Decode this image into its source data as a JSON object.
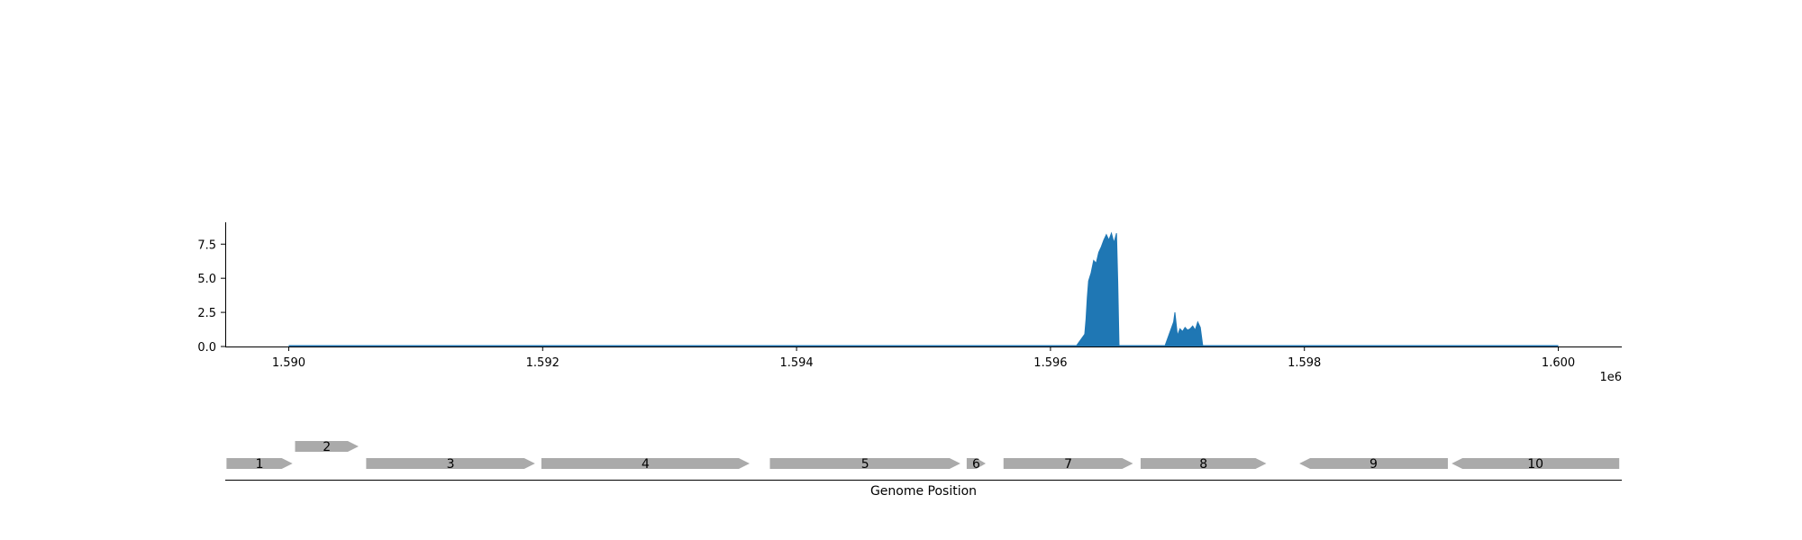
{
  "chart_data": [
    {
      "type": "area",
      "title": "",
      "xlabel": "",
      "ylabel": "",
      "x_offset_label": "1e6",
      "xlim": [
        1.5895,
        1.6005
      ],
      "ylim": [
        0,
        9.1
      ],
      "x_ticks": [
        {
          "value": 1.59,
          "label": "1.590"
        },
        {
          "value": 1.592,
          "label": "1.592"
        },
        {
          "value": 1.594,
          "label": "1.594"
        },
        {
          "value": 1.596,
          "label": "1.596"
        },
        {
          "value": 1.598,
          "label": "1.598"
        },
        {
          "value": 1.6,
          "label": "1.600"
        }
      ],
      "y_ticks": [
        {
          "value": 0.0,
          "label": "0.0"
        },
        {
          "value": 2.5,
          "label": "2.5"
        },
        {
          "value": 5.0,
          "label": "5.0"
        },
        {
          "value": 7.5,
          "label": "7.5"
        }
      ],
      "grid": false,
      "color": "#1f77b4",
      "x": [
        1.59,
        1.5962,
        1.59627,
        1.59628,
        1.59629,
        1.5963,
        1.59632,
        1.59634,
        1.59636,
        1.59638,
        1.5964,
        1.59642,
        1.59644,
        1.59646,
        1.59648,
        1.5965,
        1.59652,
        1.59653,
        1.59654,
        1.5969,
        1.59697,
        1.59698,
        1.597,
        1.59702,
        1.59704,
        1.59706,
        1.59708,
        1.5971,
        1.59712,
        1.59714,
        1.59716,
        1.59718,
        1.5972,
        1.6
      ],
      "y": [
        0.0,
        0.0,
        0.9,
        2.0,
        3.6,
        4.8,
        5.4,
        6.3,
        6.1,
        6.9,
        7.3,
        7.8,
        8.2,
        7.8,
        8.3,
        7.6,
        8.3,
        4.7,
        0.0,
        0.0,
        1.8,
        2.5,
        0.8,
        1.3,
        1.1,
        1.4,
        1.2,
        1.3,
        1.5,
        1.2,
        1.8,
        1.4,
        0.0,
        0.0
      ]
    },
    {
      "type": "gene-track",
      "xlabel": "Genome Position",
      "xlim": [
        1.5895,
        1.6005
      ],
      "genes": [
        {
          "label": "1",
          "start": 1.58951,
          "end": 1.59003,
          "strand": "+",
          "row": 0
        },
        {
          "label": "2",
          "start": 1.59005,
          "end": 1.59055,
          "strand": "+",
          "row": 1
        },
        {
          "label": "3",
          "start": 1.59061,
          "end": 1.59194,
          "strand": "+",
          "row": 0
        },
        {
          "label": "4",
          "start": 1.59199,
          "end": 1.59363,
          "strand": "+",
          "row": 0
        },
        {
          "label": "5",
          "start": 1.59379,
          "end": 1.59529,
          "strand": "+",
          "row": 0
        },
        {
          "label": "6",
          "start": 1.59534,
          "end": 1.59549,
          "strand": "+",
          "row": 0
        },
        {
          "label": "7",
          "start": 1.59563,
          "end": 1.59665,
          "strand": "+",
          "row": 0
        },
        {
          "label": "8",
          "start": 1.59671,
          "end": 1.5977,
          "strand": "+",
          "row": 0
        },
        {
          "label": "9",
          "start": 1.59796,
          "end": 1.59913,
          "strand": "-",
          "row": 0
        },
        {
          "label": "10",
          "start": 1.59916,
          "end": 1.60048,
          "strand": "-",
          "row": 0
        }
      ],
      "color": "#aaaaaa"
    }
  ]
}
